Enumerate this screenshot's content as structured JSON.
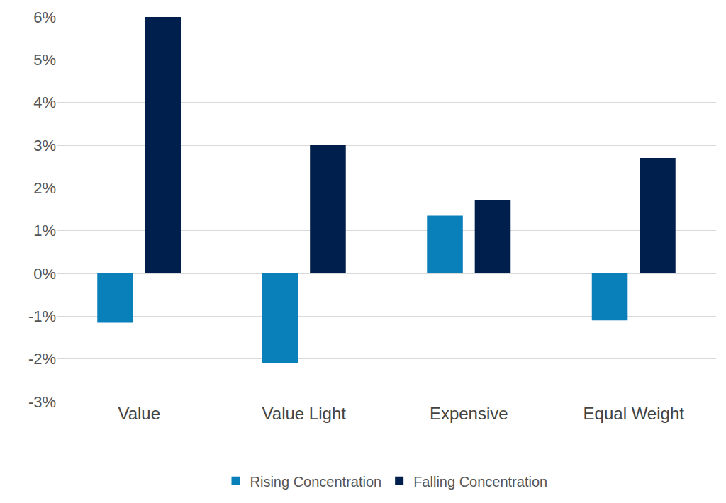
{
  "chart_data": {
    "type": "bar",
    "categories": [
      "Value",
      "Value Light",
      "Expensive",
      "Equal Weight"
    ],
    "series": [
      {
        "name": "Rising Concentration",
        "color": "#0a80bb",
        "values": [
          -1.15,
          -2.1,
          1.35,
          -1.1
        ]
      },
      {
        "name": "Falling Concentration",
        "color": "#001f4d",
        "values": [
          6.0,
          3.0,
          1.72,
          2.7
        ]
      }
    ],
    "ylim": [
      -3,
      6
    ],
    "yticks": [
      {
        "value": -3,
        "label": "-3%"
      },
      {
        "value": -2,
        "label": "-2%"
      },
      {
        "value": -1,
        "label": "-1%"
      },
      {
        "value": 0,
        "label": "0%"
      },
      {
        "value": 1,
        "label": "1%"
      },
      {
        "value": 2,
        "label": "2%"
      },
      {
        "value": 3,
        "label": "3%"
      },
      {
        "value": 4,
        "label": "4%"
      },
      {
        "value": 5,
        "label": "5%"
      },
      {
        "value": 6,
        "label": "6%"
      }
    ],
    "grid": true,
    "legend": "bottom"
  }
}
